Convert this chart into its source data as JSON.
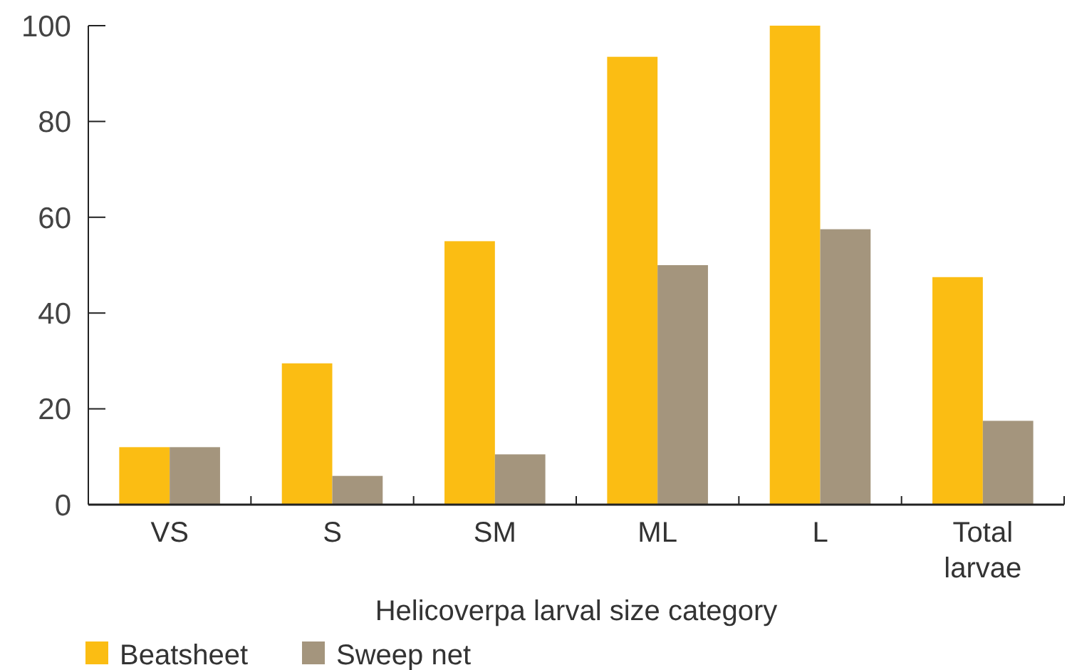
{
  "chart_data": {
    "type": "bar",
    "xlabel": "Helicoverpa larval size category",
    "categories": [
      "VS",
      "S",
      "SM",
      "ML",
      "L",
      "Total larvae"
    ],
    "series": [
      {
        "name": "Beatsheet",
        "color": "#fbbd13",
        "values": [
          12,
          29.5,
          55,
          93.5,
          100,
          47.5
        ]
      },
      {
        "name": "Sweep net",
        "color": "#a4957d",
        "values": [
          12,
          6,
          10.5,
          50,
          57.5,
          17.5
        ]
      }
    ],
    "ylim": [
      0,
      100
    ],
    "yticks": [
      0,
      20,
      40,
      60,
      80,
      100
    ],
    "legend": "bottom"
  }
}
